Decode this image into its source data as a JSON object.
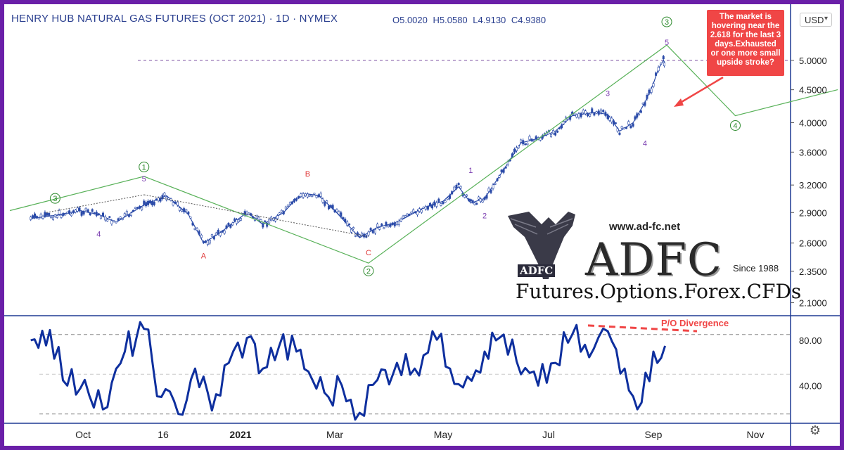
{
  "header": {
    "title": "HENRY HUB NATURAL GAS FUTURES (OCT 2021) · 1D · NYMEX",
    "ohlc": {
      "open": "O5.0020",
      "high": "H5.0580",
      "low": "L4.9130",
      "close": "C4.9380"
    },
    "currency": "USD"
  },
  "callout": {
    "text": "The market is hovering near the 2.618 for the last 3 days.Exhausted or one more small upside stroke?"
  },
  "watermark": {
    "url": "www.ad-fc.net",
    "brand": "ADFC",
    "small_brand": "ADFC",
    "tagline": "Futures.Options.Forex.CFDs",
    "since": "Since 1988"
  },
  "icons": {
    "settings": "gear-icon",
    "currency_menu": "chevron-down-icon",
    "logo": "eagle-logo"
  },
  "colors": {
    "frame": "#6a1fa8",
    "price": "#2a4aa8",
    "oscillator": "#0e2f9e",
    "wave_line": "#58b158",
    "wave_label_primary": "#2e8b2e",
    "wave_label_minor": "#7a3cb0",
    "corrective_label": "#e03a3a",
    "callout": "#f04646",
    "divergence": "#f04646"
  },
  "chart_data": [
    {
      "type": "line",
      "title": "HENRY HUB NATURAL GAS FUTURES (OCT 2021) · 1D · NYMEX",
      "xlabel": "",
      "ylabel": "",
      "x_tick_labels": [
        "Oct",
        "16",
        "2021",
        "Mar",
        "May",
        "Jul",
        "Sep",
        "Nov"
      ],
      "y_tick_labels": [
        "2.1000",
        "2.3500",
        "2.6000",
        "2.9000",
        "3.2000",
        "3.6000",
        "4.0000",
        "4.5000",
        "5.0000"
      ],
      "scale": "log",
      "ylim": [
        2.02,
        6.05
      ],
      "reference_level": 5.0,
      "series": [
        {
          "x": [
            "2020-09-01",
            "2020-09-15",
            "2020-09-29",
            "2020-10-10",
            "2020-10-20",
            "2020-11-05",
            "2020-11-18",
            "2020-12-01",
            "2020-12-10",
            "2020-12-20",
            "2021-01-05",
            "2021-01-15",
            "2021-01-28",
            "2021-02-05",
            "2021-02-12",
            "2021-02-19",
            "2021-03-01",
            "2021-03-15",
            "2021-03-25",
            "2021-04-05",
            "2021-04-20",
            "2021-05-01",
            "2021-05-10",
            "2021-05-17",
            "2021-05-25",
            "2021-06-05",
            "2021-06-15",
            "2021-06-25",
            "2021-07-05",
            "2021-07-15",
            "2021-07-28",
            "2021-08-05",
            "2021-08-12",
            "2021-08-20",
            "2021-08-27",
            "2021-09-01",
            "2021-09-04",
            "2021-09-07",
            "2021-09-08"
          ],
          "values": [
            2.84,
            2.87,
            2.92,
            2.88,
            2.8,
            2.98,
            3.08,
            2.88,
            2.6,
            2.7,
            2.9,
            2.78,
            2.9,
            3.05,
            3.1,
            3.08,
            2.92,
            2.65,
            2.75,
            2.8,
            2.95,
            3.02,
            3.18,
            3.0,
            3.05,
            3.38,
            3.72,
            3.78,
            3.88,
            4.1,
            4.15,
            4.12,
            3.88,
            4.0,
            4.3,
            4.6,
            4.85,
            5.0,
            4.94
          ]
        }
      ],
      "annotations": [
        {
          "text": "3",
          "x": "2020-09-15",
          "y": 3.02
        },
        {
          "text": "4",
          "x": "2020-10-10",
          "y": 2.66
        },
        {
          "text": "1",
          "x": "2020-11-05",
          "y": 3.38
        },
        {
          "text": "5",
          "x": "2020-11-05",
          "y": 3.24
        },
        {
          "text": "A",
          "x": "2020-12-10",
          "y": 2.46
        },
        {
          "text": "B",
          "x": "2021-02-12",
          "y": 3.3
        },
        {
          "text": "C",
          "x": "2021-03-20",
          "y": 2.49
        },
        {
          "text": "2",
          "x": "2021-03-20",
          "y": 2.33
        },
        {
          "text": "1",
          "x": "2021-05-17",
          "y": 3.34
        },
        {
          "text": "2",
          "x": "2021-05-25",
          "y": 2.84
        },
        {
          "text": "3",
          "x": "2021-08-05",
          "y": 4.4
        },
        {
          "text": "4",
          "x": "2021-08-27",
          "y": 3.68
        },
        {
          "text": "3",
          "x": "2021-09-09",
          "y": 5.68
        },
        {
          "text": "5",
          "x": "2021-09-09",
          "y": 5.28
        },
        {
          "text": "4",
          "x": "2021-10-20",
          "y": 3.92
        }
      ]
    },
    {
      "type": "line",
      "title": "",
      "xlabel": "",
      "ylabel": "",
      "y_tick_labels": [
        "40.00",
        "80.00"
      ],
      "ylim": [
        8,
        101
      ],
      "series": [
        {
          "x": [
            "2020-09-01",
            "2020-09-12",
            "2020-09-22",
            "2020-10-02",
            "2020-10-15",
            "2020-10-25",
            "2020-11-05",
            "2020-11-15",
            "2020-11-25",
            "2020-12-05",
            "2020-12-15",
            "2020-12-25",
            "2021-01-05",
            "2021-01-15",
            "2021-01-25",
            "2021-02-05",
            "2021-02-15",
            "2021-02-25",
            "2021-03-05",
            "2021-03-15",
            "2021-03-25",
            "2021-04-05",
            "2021-04-15",
            "2021-04-25",
            "2021-05-05",
            "2021-05-15",
            "2021-05-25",
            "2021-06-05",
            "2021-06-15",
            "2021-06-25",
            "2021-07-05",
            "2021-07-15",
            "2021-07-25",
            "2021-08-05",
            "2021-08-15",
            "2021-08-25",
            "2021-09-01",
            "2021-09-08"
          ],
          "values": [
            80,
            89,
            40,
            45,
            21,
            70,
            90,
            30,
            15,
            55,
            18,
            60,
            82,
            55,
            74,
            70,
            45,
            30,
            40,
            16,
            45,
            60,
            55,
            88,
            55,
            48,
            70,
            85,
            50,
            40,
            60,
            85,
            65,
            88,
            55,
            25,
            70,
            75
          ]
        }
      ],
      "levels": [
        85,
        15
      ],
      "annotations": [
        {
          "text": "P/O Divergence",
          "x": "2021-08-25",
          "y": 94
        }
      ]
    }
  ]
}
